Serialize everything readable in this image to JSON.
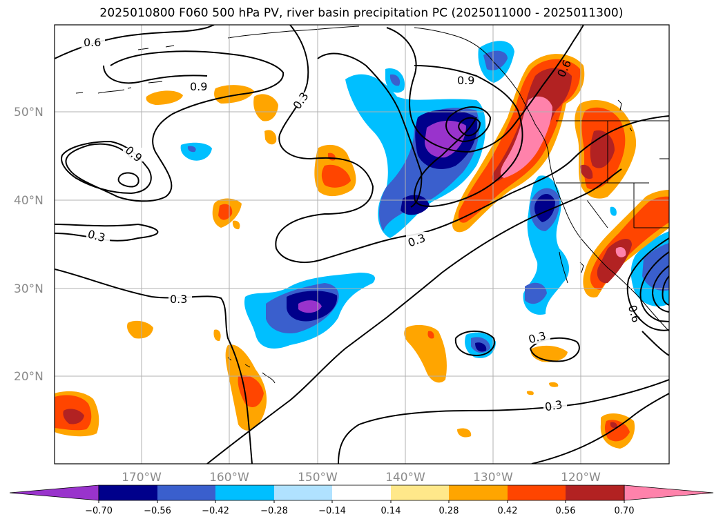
{
  "title": "2025010800 F060 500 hPa PV, river basin precipitation PC (2025011000 - 2025011300)",
  "lat_labels": [
    "50°N",
    "40°N",
    "30°N",
    "20°N"
  ],
  "lon_labels": [
    "170°W",
    "160°W",
    "150°W",
    "140°W",
    "130°W",
    "120°W"
  ],
  "contour_labels": [
    "0.6",
    "0.9",
    "0.3",
    "0.9",
    "0.3",
    "0.3",
    "0.3",
    "0.6",
    "0.9",
    "0.3",
    "0.3",
    "0.6"
  ],
  "colorbar": {
    "ticks": [
      "−0.70",
      "−0.56",
      "−0.42",
      "−0.28",
      "−0.14",
      "0.14",
      "0.28",
      "0.42",
      "0.56",
      "0.70"
    ],
    "colors": [
      "#9933cc",
      "#00008b",
      "#3a5fcd",
      "#00bfff",
      "#b0e2ff",
      "#ffffff",
      "#ffe88a",
      "#ffa500",
      "#ff4500",
      "#b22222",
      "#ff82ab"
    ]
  },
  "colors": {
    "purple": "#9933cc",
    "navy": "#00008b",
    "royal": "#3a5fcd",
    "sky": "#00bfff",
    "light_sky": "#b0e2ff",
    "light_yellow": "#ffe88a",
    "orange": "#ffa500",
    "red_orange": "#ff4500",
    "firebrick": "#b22222",
    "pink": "#ff82ab",
    "grid": "#b0b0b0"
  }
}
